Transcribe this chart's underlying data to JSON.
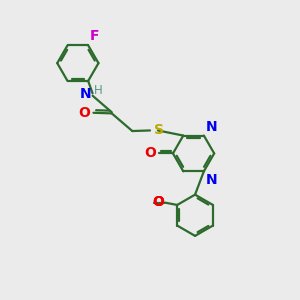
{
  "background_color": "#ebebeb",
  "bond_color": "#2d6b2d",
  "N_color": "#0000ee",
  "O_color": "#ee0000",
  "S_color": "#bbaa00",
  "F_color": "#cc00cc",
  "H_color": "#559988",
  "line_width": 1.6,
  "font_size": 10,
  "figsize": [
    3.0,
    3.0
  ],
  "dpi": 100,
  "xlim": [
    0,
    10
  ],
  "ylim": [
    0,
    10
  ]
}
